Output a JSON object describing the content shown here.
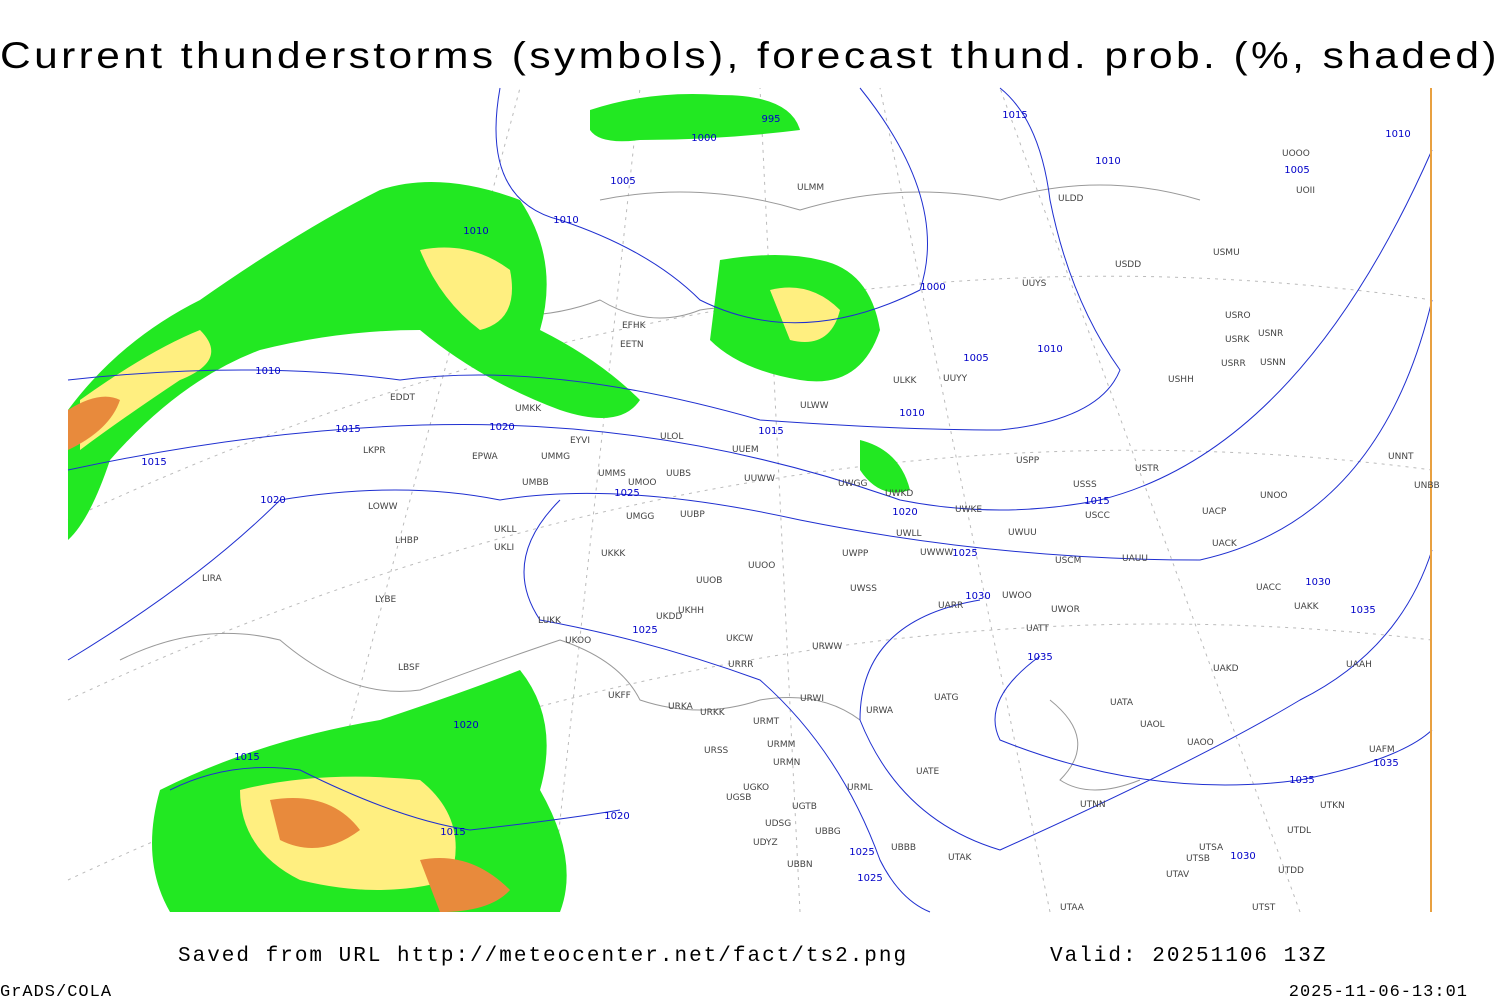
{
  "header": {
    "title": "Current thunderstorms (symbols), forecast thund. prob. (%, shaded)"
  },
  "footer": {
    "source": "Saved from URL http://meteocenter.net/fact/ts2.png",
    "valid": "Valid: 20251106 13Z",
    "software": "GrADS/COLA",
    "timestamp": "2025-11-06-13:01"
  },
  "map": {
    "isobar_labels": [
      995,
      1000,
      1005,
      1010,
      1010,
      1010,
      1015,
      1015,
      1020,
      1020,
      1015,
      1025,
      1020,
      1025,
      1030,
      1025,
      1020,
      1015,
      1015,
      1020,
      1025,
      1025,
      1015,
      1010,
      1005,
      1010,
      1000,
      1005,
      1010,
      1010,
      1015,
      1030,
      1035,
      1035,
      1035,
      1035,
      1030
    ],
    "stations": [
      "EFHK",
      "EETN",
      "ULOL",
      "UUEM",
      "UMMG",
      "EPWA",
      "LKPR",
      "EDDT",
      "UMKK",
      "EYVI",
      "UMMS",
      "UMOO",
      "UUBS",
      "UMBB",
      "UUWW",
      "UWGG",
      "UWKD",
      "UWKE",
      "UWLL",
      "UWWW",
      "UWPP",
      "UKLL",
      "UKLI",
      "UMGG",
      "UUBP",
      "LOWW",
      "LHBP",
      "LIRA",
      "LYBE",
      "UKKK",
      "UUOO",
      "UUOB",
      "UKHH",
      "UKDD",
      "LUKK",
      "UKOO",
      "UKFF",
      "URKA",
      "URKK",
      "UKCW",
      "URRR",
      "URWW",
      "UWSS",
      "URWI",
      "URMT",
      "URMM",
      "URMN",
      "URSS",
      "UGKO",
      "UGSB",
      "UGTB",
      "UBBG",
      "UDSG",
      "UDYZ",
      "UBBN",
      "URML",
      "UBBB",
      "UATG",
      "URWA",
      "UATE",
      "UTAK",
      "LBSF",
      "UARR",
      "UWOO",
      "UWOR",
      "UATT",
      "UAKD",
      "UATA",
      "UAOL",
      "UAOO",
      "UTNN",
      "UAAH",
      "UAKK",
      "UACC",
      "UAUU",
      "USCM",
      "UACK",
      "UACP",
      "USCC",
      "USSS",
      "USTR",
      "UNOO",
      "UNNT",
      "UNBB",
      "USPP",
      "UWUU",
      "ULKK",
      "UUYY",
      "UUYS",
      "ULWW",
      "ULDD",
      "ULMM",
      "USDD",
      "USMU",
      "USRO",
      "USRK",
      "USNR",
      "USRR",
      "USNN",
      "USHH",
      "UOOO",
      "UOII",
      "UTSA",
      "UTSB",
      "UTAV",
      "UTST",
      "UTDD",
      "UTDL",
      "UTKN",
      "UAFM",
      "UTAA"
    ]
  }
}
